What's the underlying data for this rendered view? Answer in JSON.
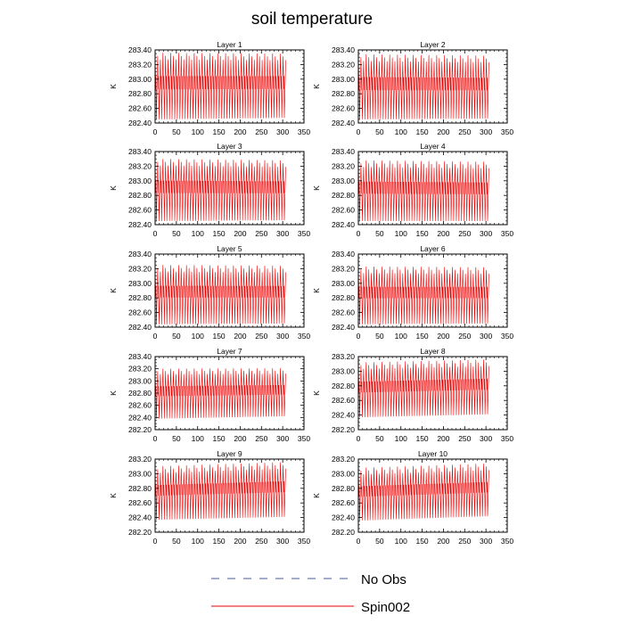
{
  "title": "soil temperature",
  "legend": {
    "entries": [
      {
        "label": "No Obs",
        "style": "dashed",
        "color": "#4a5a9a"
      },
      {
        "label": "Spin002",
        "style": "solid",
        "color": "#ee0000"
      }
    ]
  },
  "chart_data": [
    {
      "type": "line",
      "title": "Layer 1",
      "ylabel": "K",
      "xlim": [
        0,
        350
      ],
      "ylim": [
        282.4,
        283.4
      ],
      "yticks": [
        "282.40",
        "282.60",
        "282.80",
        "283.00",
        "283.20",
        "283.40"
      ],
      "xticks": [
        "0",
        "50",
        "100",
        "150",
        "200",
        "250",
        "300",
        "350"
      ],
      "series": [
        {
          "name": "Spin002",
          "color": "#ee0000",
          "x_end": 307,
          "min_start": 282.45,
          "min_end": 282.47,
          "max_start": 283.36,
          "max_end": 283.35,
          "cycles": 50
        }
      ]
    },
    {
      "type": "line",
      "title": "Layer 2",
      "ylabel": "K",
      "xlim": [
        0,
        350
      ],
      "ylim": [
        282.4,
        283.4
      ],
      "yticks": [
        "282.40",
        "282.60",
        "282.80",
        "283.00",
        "283.20",
        "283.40"
      ],
      "xticks": [
        "0",
        "50",
        "100",
        "150",
        "200",
        "250",
        "300",
        "350"
      ],
      "series": [
        {
          "name": "Spin002",
          "color": "#ee0000",
          "x_end": 307,
          "min_start": 282.45,
          "min_end": 282.46,
          "max_start": 283.34,
          "max_end": 283.32,
          "cycles": 50
        }
      ]
    },
    {
      "type": "line",
      "title": "Layer 3",
      "ylabel": "K",
      "xlim": [
        0,
        350
      ],
      "ylim": [
        282.4,
        283.4
      ],
      "yticks": [
        "282.40",
        "282.60",
        "282.80",
        "283.00",
        "283.20",
        "283.40"
      ],
      "xticks": [
        "0",
        "50",
        "100",
        "150",
        "200",
        "250",
        "300",
        "350"
      ],
      "series": [
        {
          "name": "Spin002",
          "color": "#ee0000",
          "x_end": 307,
          "min_start": 282.45,
          "min_end": 282.46,
          "max_start": 283.3,
          "max_end": 283.28,
          "cycles": 50
        }
      ]
    },
    {
      "type": "line",
      "title": "Layer 4",
      "ylabel": "K",
      "xlim": [
        0,
        350
      ],
      "ylim": [
        282.4,
        283.4
      ],
      "yticks": [
        "282.40",
        "282.60",
        "282.80",
        "283.00",
        "283.20",
        "283.40"
      ],
      "xticks": [
        "0",
        "50",
        "100",
        "150",
        "200",
        "250",
        "300",
        "350"
      ],
      "series": [
        {
          "name": "Spin002",
          "color": "#ee0000",
          "x_end": 307,
          "min_start": 282.45,
          "min_end": 282.45,
          "max_start": 283.28,
          "max_end": 283.26,
          "cycles": 50
        }
      ]
    },
    {
      "type": "line",
      "title": "Layer 5",
      "ylabel": "K",
      "xlim": [
        0,
        350
      ],
      "ylim": [
        282.4,
        283.4
      ],
      "yticks": [
        "282.40",
        "282.60",
        "282.80",
        "283.00",
        "283.20",
        "283.40"
      ],
      "xticks": [
        "0",
        "50",
        "100",
        "150",
        "200",
        "250",
        "300",
        "350"
      ],
      "series": [
        {
          "name": "Spin002",
          "color": "#ee0000",
          "x_end": 307,
          "min_start": 282.44,
          "min_end": 282.45,
          "max_start": 283.25,
          "max_end": 283.24,
          "cycles": 50
        }
      ]
    },
    {
      "type": "line",
      "title": "Layer 6",
      "ylabel": "K",
      "xlim": [
        0,
        350
      ],
      "ylim": [
        282.4,
        283.4
      ],
      "yticks": [
        "282.40",
        "282.60",
        "282.80",
        "283.00",
        "283.20",
        "283.40"
      ],
      "xticks": [
        "0",
        "50",
        "100",
        "150",
        "200",
        "250",
        "300",
        "350"
      ],
      "series": [
        {
          "name": "Spin002",
          "color": "#ee0000",
          "x_end": 307,
          "min_start": 282.44,
          "min_end": 282.45,
          "max_start": 283.23,
          "max_end": 283.22,
          "cycles": 50
        }
      ]
    },
    {
      "type": "line",
      "title": "Layer 7",
      "ylabel": "K",
      "xlim": [
        0,
        350
      ],
      "ylim": [
        282.2,
        283.4
      ],
      "yticks": [
        "282.20",
        "282.40",
        "282.60",
        "282.80",
        "283.00",
        "283.20",
        "283.40"
      ],
      "xticks": [
        "0",
        "50",
        "100",
        "150",
        "200",
        "250",
        "300",
        "350"
      ],
      "series": [
        {
          "name": "Spin002",
          "color": "#ee0000",
          "x_end": 307,
          "min_start": 282.38,
          "min_end": 282.42,
          "max_start": 283.2,
          "max_end": 283.21,
          "cycles": 50
        }
      ]
    },
    {
      "type": "line",
      "title": "Layer 8",
      "ylabel": "K",
      "xlim": [
        0,
        350
      ],
      "ylim": [
        282.2,
        283.2
      ],
      "yticks": [
        "282.20",
        "282.40",
        "282.60",
        "282.80",
        "283.00",
        "283.20"
      ],
      "xticks": [
        "0",
        "50",
        "100",
        "150",
        "200",
        "250",
        "300",
        "350"
      ],
      "series": [
        {
          "name": "Spin002",
          "color": "#ee0000",
          "x_end": 307,
          "min_start": 282.37,
          "min_end": 282.41,
          "max_start": 283.12,
          "max_end": 283.16,
          "cycles": 50
        }
      ]
    },
    {
      "type": "line",
      "title": "Layer 9",
      "ylabel": "K",
      "xlim": [
        0,
        350
      ],
      "ylim": [
        282.2,
        283.2
      ],
      "yticks": [
        "282.20",
        "282.40",
        "282.60",
        "282.80",
        "283.00",
        "283.20"
      ],
      "xticks": [
        "0",
        "50",
        "100",
        "150",
        "200",
        "250",
        "300",
        "350"
      ],
      "series": [
        {
          "name": "Spin002",
          "color": "#ee0000",
          "x_end": 307,
          "min_start": 282.37,
          "min_end": 282.41,
          "max_start": 283.1,
          "max_end": 283.16,
          "cycles": 50
        }
      ]
    },
    {
      "type": "line",
      "title": "Layer 10",
      "ylabel": "K",
      "xlim": [
        0,
        350
      ],
      "ylim": [
        282.2,
        283.2
      ],
      "yticks": [
        "282.20",
        "282.40",
        "282.60",
        "282.80",
        "283.00",
        "283.20"
      ],
      "xticks": [
        "0",
        "50",
        "100",
        "150",
        "200",
        "250",
        "300",
        "350"
      ],
      "series": [
        {
          "name": "Spin002",
          "color": "#ee0000",
          "x_end": 307,
          "min_start": 282.36,
          "min_end": 282.42,
          "max_start": 283.08,
          "max_end": 283.14,
          "cycles": 50
        }
      ]
    }
  ]
}
